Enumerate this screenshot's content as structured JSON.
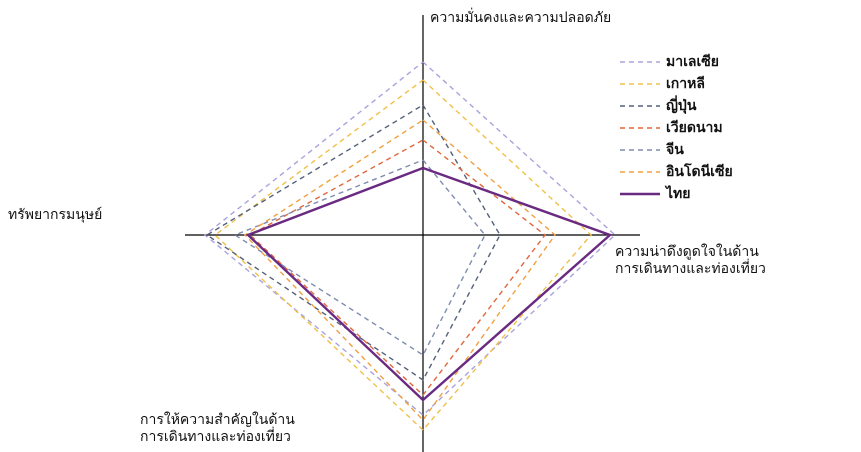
{
  "chart_data": {
    "type": "radar",
    "axes": [
      "ความมั่นคงและความปลอดภัย",
      "ความน่าดึงดูดใจในด้าน การเดินทางและท่องเที่ยว",
      "การให้ความสำคัญในด้าน การเดินทางและท่องเที่ยว",
      "ทรัพยากรมนุษย์"
    ],
    "rlim": [
      0,
      230
    ],
    "series": [
      {
        "name": "มาเลเซีย",
        "color": "#a9a3dc",
        "dashed": true,
        "values": [
          173,
          192,
          180,
          218
        ]
      },
      {
        "name": "เกาหลี",
        "color": "#f0c048",
        "dashed": true,
        "values": [
          155,
          168,
          195,
          208
        ]
      },
      {
        "name": "ญี่ปุ่น",
        "color": "#55607a",
        "dashed": true,
        "values": [
          130,
          77,
          145,
          216
        ]
      },
      {
        "name": "เวียดนาม",
        "color": "#e0673c",
        "dashed": true,
        "values": [
          95,
          122,
          160,
          173
        ]
      },
      {
        "name": "จีน",
        "color": "#7f8cb0",
        "dashed": true,
        "values": [
          75,
          62,
          120,
          188
        ]
      },
      {
        "name": "อินโดนีเซีย",
        "color": "#f0a040",
        "dashed": true,
        "values": [
          115,
          132,
          185,
          178
        ]
      },
      {
        "name": "ไทย",
        "color": "#6a2a82",
        "dashed": false,
        "values": [
          67,
          187,
          165,
          175
        ]
      }
    ]
  }
}
